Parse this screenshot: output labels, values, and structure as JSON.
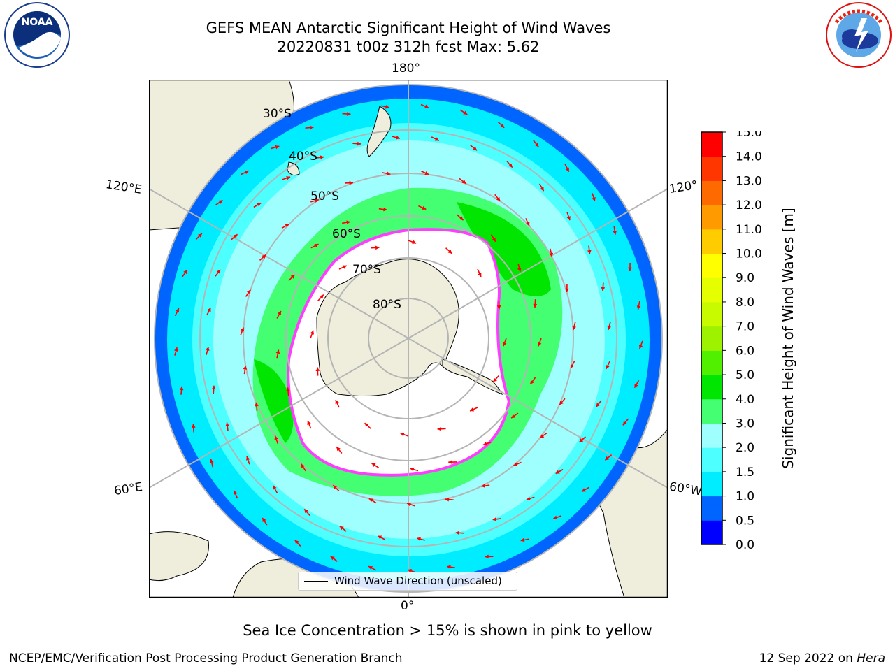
{
  "header": {
    "title_line1": "GEFS MEAN Antarctic Significant Height of Wind Waves",
    "title_line2": "20220831 t00z 312h fcst   Max: 5.62"
  },
  "logos": {
    "left": {
      "text": "NOAA",
      "ring_text_top": "NATIONAL OCEANIC AND ATMOSPHERIC ADMINISTRATION",
      "ring_text_bottom": "U.S. DEPARTMENT OF COMMERCE"
    },
    "right": {
      "ring_text": "NATIONAL WEATHER SERVICE"
    }
  },
  "map": {
    "projection": "south polar stereographic",
    "longitude_labels": {
      "top": "180°",
      "bottom": "0°",
      "upper_left": "120°E",
      "lower_left": "60°E",
      "upper_right": "120°",
      "lower_right": "60°W"
    },
    "latitude_labels": [
      "30°S",
      "40°S",
      "50°S",
      "60°S",
      "70°S",
      "80°S"
    ],
    "legend": {
      "label": "Wind Wave Direction (unscaled)"
    },
    "colors": {
      "land": "#efeedc",
      "sea_ice": "#ffffff",
      "grid": "#b5b5b5",
      "arrow": "#ff0000",
      "ice_edge": "#ff3cff"
    }
  },
  "colorbar": {
    "label": "Significant Height of Wind Waves [m]",
    "ticks": [
      "0.0",
      "0.5",
      "1.0",
      "1.5",
      "2.0",
      "3.0",
      "4.0",
      "5.0",
      "6.0",
      "7.0",
      "8.0",
      "9.0",
      "10.0",
      "11.0",
      "12.0",
      "13.0",
      "14.0",
      "15.0"
    ],
    "colors": [
      "#0000ff",
      "#0064ff",
      "#00ecff",
      "#4effff",
      "#9ffffe",
      "#44ff72",
      "#00e600",
      "#50f000",
      "#9ef200",
      "#c9fb00",
      "#e6ff00",
      "#ffff00",
      "#ffcc00",
      "#ff9a00",
      "#ff6a00",
      "#ff3600",
      "#ff0000"
    ]
  },
  "caption": "Sea Ice Concentration > 15% is shown in pink to yellow",
  "footer": {
    "left": "NCEP/EMC/Verification Post Processing Product Generation Branch",
    "right_prefix": "12 Sep 2022 on ",
    "right_host": "Hera"
  }
}
